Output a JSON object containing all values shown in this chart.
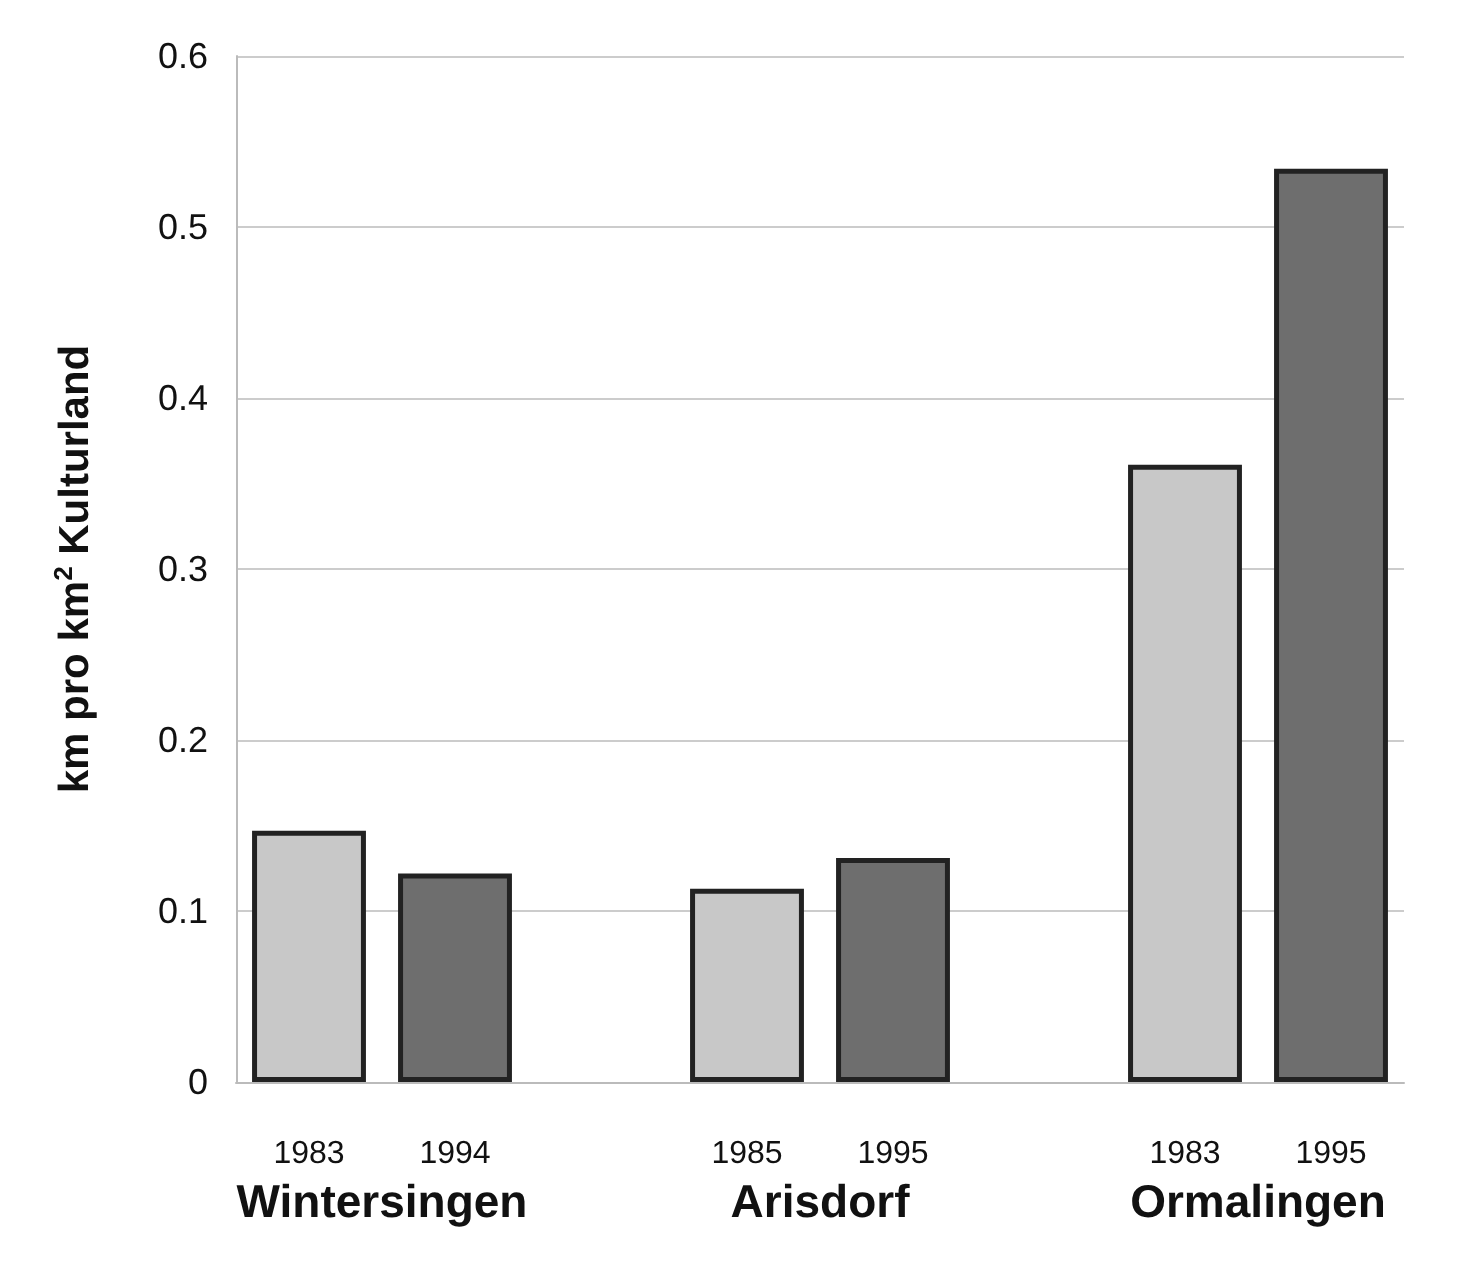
{
  "chart_data": {
    "type": "bar",
    "ylabel": "km pro km$^{2}$ Kulturland",
    "categories": [
      "1983",
      "1994",
      null,
      "1985",
      "1995",
      null,
      "1983",
      "1995"
    ],
    "values": [
      0.147,
      0.122,
      null,
      0.113,
      0.131,
      null,
      0.361,
      0.534
    ],
    "colors": [
      "#c8c8c8",
      "#6e6e6e",
      null,
      "#c8c8c8",
      "#6e6e6e",
      null,
      "#c8c8c8",
      "#6e6e6e"
    ],
    "annotations": [
      "Wintersingen",
      "Arisdorf",
      "Ormalingen"
    ],
    "ylim": [
      0,
      0.6
    ],
    "yticks": [
      0,
      0.1,
      0.2,
      0.3,
      0.4,
      0.5,
      0.6
    ],
    "grid": "y"
  }
}
